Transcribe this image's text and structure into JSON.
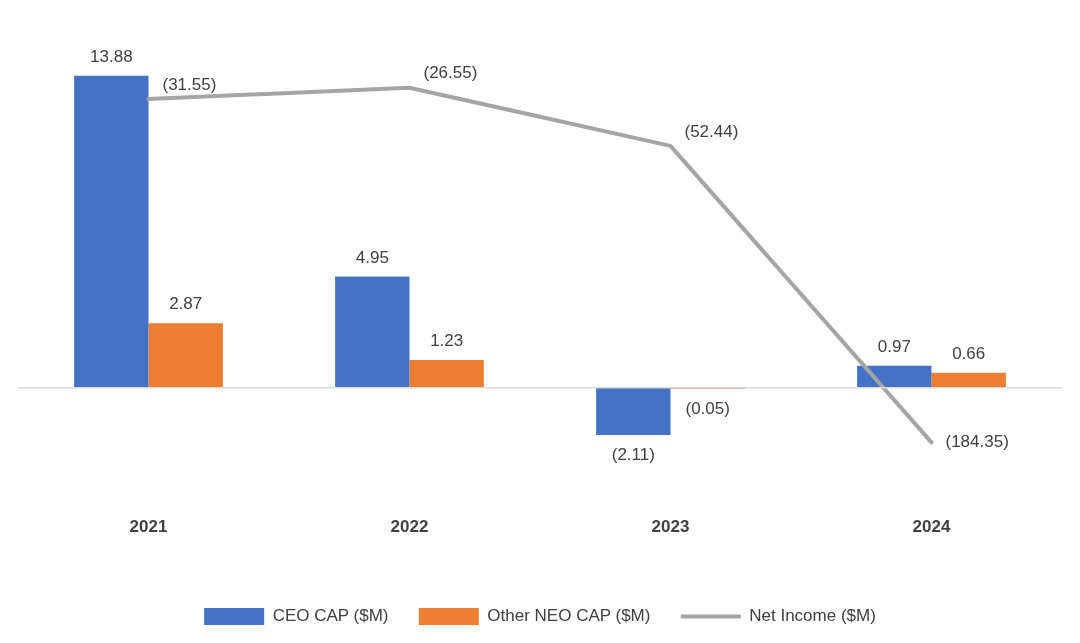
{
  "chart_data": {
    "type": "bar",
    "categories": [
      "2021",
      "2022",
      "2023",
      "2024"
    ],
    "series": [
      {
        "name": "CEO CAP ($M)",
        "type": "bar",
        "color": "#4472c4",
        "values": [
          13.88,
          4.95,
          -2.11,
          0.97
        ],
        "value_labels": [
          "13.88",
          "4.95",
          "(2.11)",
          "0.97"
        ]
      },
      {
        "name": "Other NEO CAP ($M)",
        "type": "bar",
        "color": "#ed7d31",
        "values": [
          2.87,
          1.23,
          -0.05,
          0.66
        ],
        "value_labels": [
          "2.87",
          "1.23",
          "(0.05)",
          "0.66"
        ]
      },
      {
        "name": "Net Income ($M)",
        "type": "line",
        "axis": "y2",
        "color": "#a5a5a5",
        "values": [
          -31.55,
          -26.55,
          -52.44,
          -184.35
        ],
        "value_labels": [
          "(31.55)",
          "(26.55)",
          "(52.44)",
          "(184.35)"
        ]
      }
    ],
    "tick_labels": "x",
    "grid": false,
    "legend": "bottom",
    "marker": "none"
  }
}
